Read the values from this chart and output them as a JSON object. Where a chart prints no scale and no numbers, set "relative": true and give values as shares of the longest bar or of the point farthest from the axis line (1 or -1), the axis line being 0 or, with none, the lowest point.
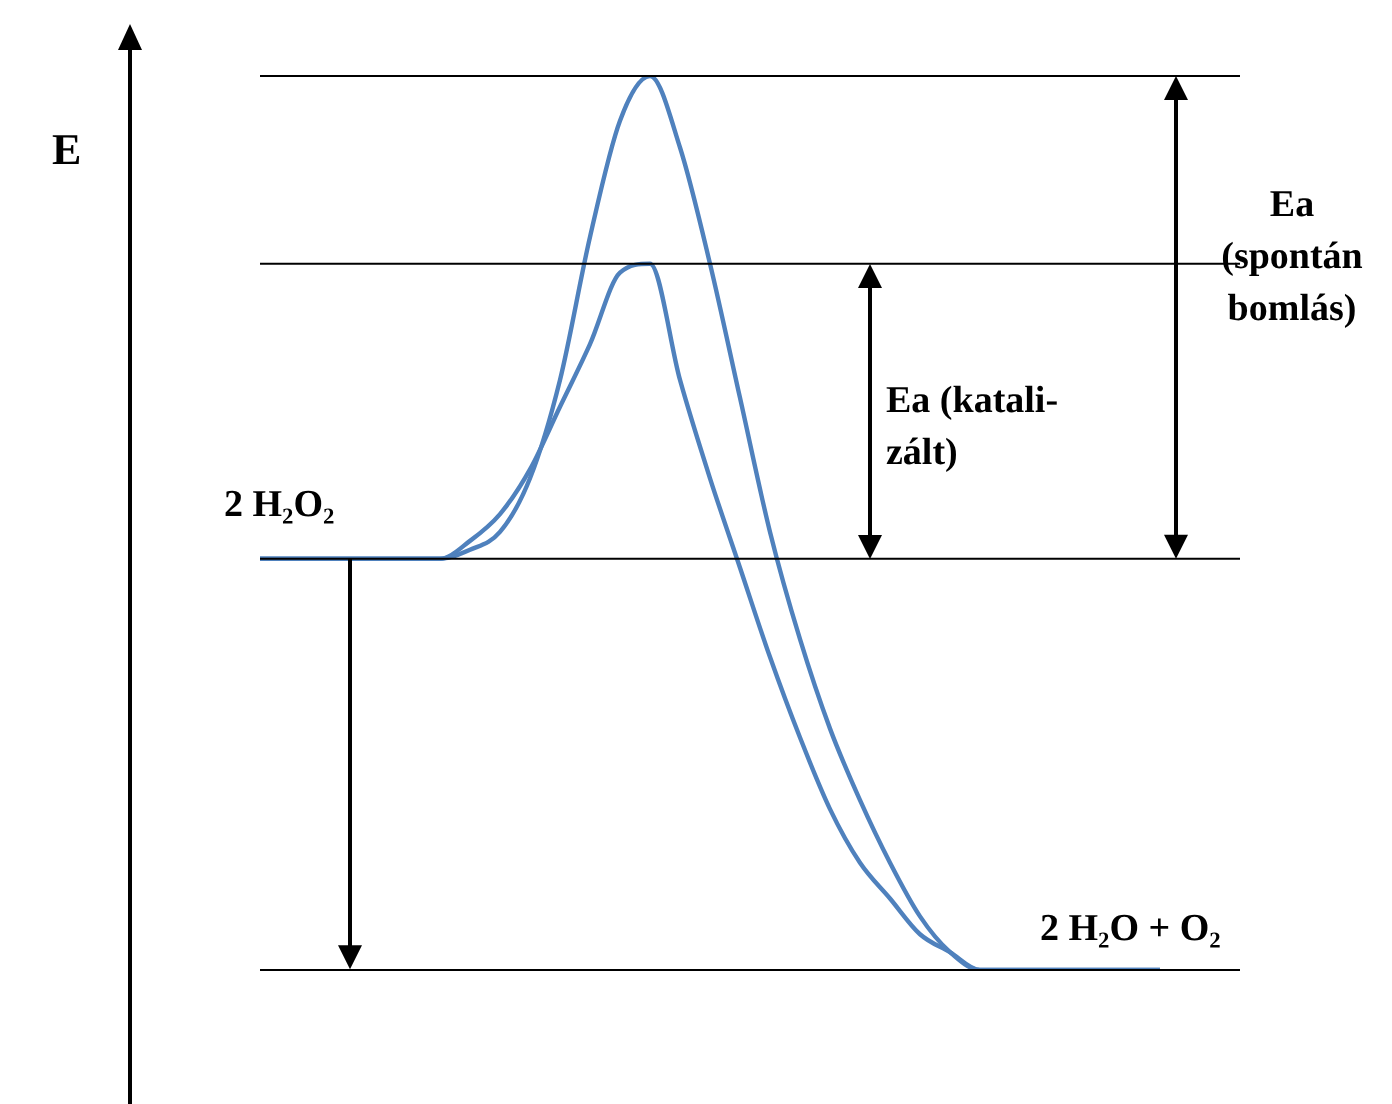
{
  "chart_data": {
    "type": "line",
    "relative": true,
    "ylabel": "E",
    "categories": [
      null,
      null,
      null,
      null,
      null,
      null,
      null,
      null,
      null,
      null,
      null,
      null,
      null,
      null,
      null,
      null,
      null,
      null,
      null,
      null,
      null,
      null,
      null,
      null,
      null,
      null,
      null,
      null,
      null,
      null,
      null
    ],
    "series": [
      {
        "color": "#4f81bd",
        "values": [
          0.46,
          0.46,
          0.46,
          0.46,
          0.46,
          0.46,
          0.46,
          0.47,
          0.49,
          0.55,
          0.66,
          0.82,
          0.95,
          1,
          0.92,
          0.79,
          0.64,
          0.49,
          0.37,
          0.27,
          0.19,
          0.12,
          0.06,
          0.02,
          0,
          0,
          0,
          0,
          0,
          0,
          0
        ]
      },
      {
        "color": "#4f81bd",
        "values": [
          0.46,
          0.46,
          0.46,
          0.46,
          0.46,
          0.46,
          0.46,
          0.48,
          0.51,
          0.56,
          0.63,
          0.7,
          0.78,
          0.79,
          0.66,
          0.55,
          0.45,
          0.35,
          0.26,
          0.18,
          0.12,
          0.08,
          0.04,
          0.02,
          0,
          0,
          0,
          0,
          0,
          0,
          0
        ]
      }
    ],
    "ref_lines": [
      {
        "axis": "y",
        "value": 1,
        "color": "#000000"
      },
      {
        "axis": "y",
        "value": 0.79,
        "color": "#000000"
      },
      {
        "axis": "y",
        "value": 0.46,
        "color": "#000000"
      },
      {
        "axis": "y",
        "value": 0,
        "color": "#000000"
      }
    ],
    "annotations": [
      "2 H₂O₂",
      "2 H₂O + O₂",
      "Ea (spontán bomlás)",
      "Ea (katali-zált)"
    ],
    "legend": false,
    "marker": "none",
    "line_style": "solid"
  }
}
